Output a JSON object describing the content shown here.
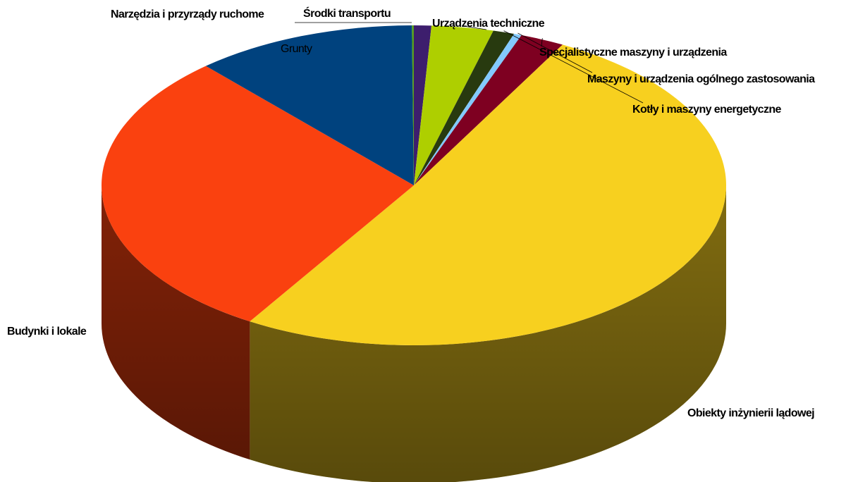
{
  "chart_data": {
    "type": "pie",
    "style": "3d",
    "legend": "none",
    "start_angle_deg": -90,
    "direction": "clockwise",
    "slices": [
      {
        "label": "Środki transportu",
        "value": 0.9,
        "color": "#3d1e6d"
      },
      {
        "label": "Urządzenia techniczne",
        "value": 3.2,
        "color": "#aecf00"
      },
      {
        "label": "Kotły i maszyny energetyczne",
        "value": 1.1,
        "color": "#283a0f"
      },
      {
        "label": "Maszyny i urządzenia ogólnego zastosowania",
        "value": 0.4,
        "color": "#83caff"
      },
      {
        "label": "Specjalistyczne maszyny i urządzenia",
        "value": 2.3,
        "color": "#7e0021"
      },
      {
        "label": "Obiekty inżynierii lądowej",
        "value": 50.9,
        "color": "#f7d01f"
      },
      {
        "label": "Budynki i lokale",
        "value": 29.6,
        "color": "#fa410f"
      },
      {
        "label": "Grunty",
        "value": 11.5,
        "color": "#00427e"
      },
      {
        "label": "Narzędzia i przyrządy ruchome",
        "value": 0.1,
        "color": "#579d1c"
      }
    ]
  }
}
